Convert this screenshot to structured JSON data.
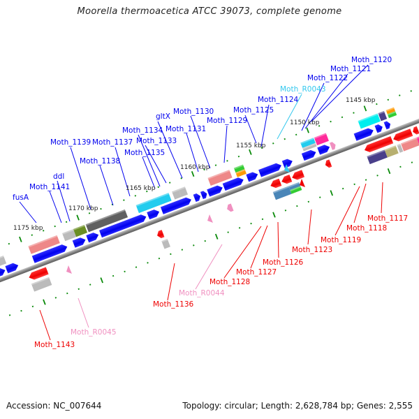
{
  "title": "Moorella thermoacetica ATCC 39073, complete genome",
  "footer": {
    "accession": "Accession: NC_007644",
    "summary": "Topology: circular; Length: 2,628,784 bp; Genes: 2,555"
  },
  "colors": {
    "forward_label": "#0000ee",
    "reverse_label": "#ee0000",
    "rna_label": "#f090c0",
    "trna_label": "#33c8ee",
    "tick": "#0a8a0a",
    "backbone": "#777777"
  },
  "scale_labels": [
    "1145 kbp",
    "1150 kbp",
    "1155 kbp",
    "1160 kbp",
    "1165 kbp",
    "1170 kbp",
    "1175 kbp"
  ],
  "genes_forward": [
    {
      "name": "Moth_1120",
      "color": "blue"
    },
    {
      "name": "Moth_1121",
      "color": "blue"
    },
    {
      "name": "Moth_1122",
      "color": "blue"
    },
    {
      "name": "Moth_R0043",
      "color": "lightblue"
    },
    {
      "name": "Moth_1124",
      "color": "blue"
    },
    {
      "name": "Moth_1125",
      "color": "blue"
    },
    {
      "name": "Moth_1129",
      "color": "blue"
    },
    {
      "name": "Moth_1130",
      "color": "blue"
    },
    {
      "name": "Moth_1131",
      "color": "blue"
    },
    {
      "name": "gltX",
      "color": "blue"
    },
    {
      "name": "Moth_1133",
      "color": "blue"
    },
    {
      "name": "Moth_1134",
      "color": "blue"
    },
    {
      "name": "Moth_1135",
      "color": "blue"
    },
    {
      "name": "Moth_1137",
      "color": "blue"
    },
    {
      "name": "Moth_1138",
      "color": "blue"
    },
    {
      "name": "Moth_1139",
      "color": "blue"
    },
    {
      "name": "ddl",
      "color": "blue"
    },
    {
      "name": "Moth_1141",
      "color": "blue"
    },
    {
      "name": "fusA",
      "color": "blue"
    }
  ],
  "genes_reverse": [
    {
      "name": "Moth_1117",
      "color": "red"
    },
    {
      "name": "Moth_1118",
      "color": "red"
    },
    {
      "name": "Moth_1119",
      "color": "red"
    },
    {
      "name": "Moth_1123",
      "color": "red"
    },
    {
      "name": "Moth_1126",
      "color": "red"
    },
    {
      "name": "Moth_1127",
      "color": "red"
    },
    {
      "name": "Moth_1128",
      "color": "red"
    },
    {
      "name": "Moth_R0044",
      "color": "pink"
    },
    {
      "name": "Moth_1136",
      "color": "red"
    },
    {
      "name": "Moth_R0045",
      "color": "pink"
    },
    {
      "name": "Moth_1143",
      "color": "red"
    }
  ]
}
